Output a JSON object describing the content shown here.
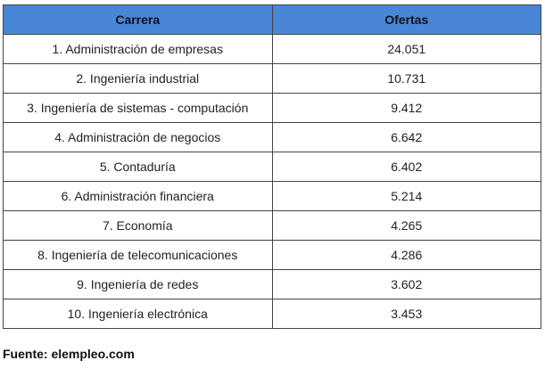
{
  "table": {
    "headers": [
      "Carrera",
      "Ofertas"
    ],
    "rows": [
      [
        "1. Administración de empresas",
        "24.051"
      ],
      [
        "2. Ingeniería industrial",
        "10.731"
      ],
      [
        "3. Ingeniería de sistemas - computación",
        "9.412"
      ],
      [
        "4. Administración de negocios",
        "6.642"
      ],
      [
        "5. Contaduría",
        "6.402"
      ],
      [
        "6. Administración financiera",
        "5.214"
      ],
      [
        "7. Economía",
        "4.265"
      ],
      [
        "8. Ingeniería de telecomunicaciones",
        "4.286"
      ],
      [
        "9. Ingeniería de redes",
        "3.602"
      ],
      [
        "10. Ingeniería electrónica",
        "3.453"
      ]
    ]
  },
  "source": "Fuente: elempleo.com"
}
